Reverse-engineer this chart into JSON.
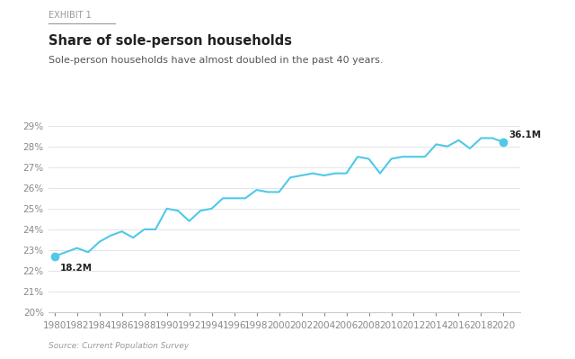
{
  "exhibit_label": "EXHIBIT 1",
  "title": "Share of sole-person households",
  "subtitle": "Sole-person households have almost doubled in the past 40 years.",
  "source": "Source: Current Population Survey",
  "line_color": "#4EC9E8",
  "background_color": "#FFFFFF",
  "years": [
    1980,
    1981,
    1982,
    1983,
    1984,
    1985,
    1986,
    1987,
    1988,
    1989,
    1990,
    1991,
    1992,
    1993,
    1994,
    1995,
    1996,
    1997,
    1998,
    1999,
    2000,
    2001,
    2002,
    2003,
    2004,
    2005,
    2006,
    2007,
    2008,
    2009,
    2010,
    2011,
    2012,
    2013,
    2014,
    2015,
    2016,
    2017,
    2018,
    2019,
    2020
  ],
  "values": [
    22.7,
    22.9,
    23.1,
    22.9,
    23.4,
    23.7,
    23.9,
    23.6,
    24.0,
    24.0,
    25.0,
    24.9,
    24.4,
    24.9,
    25.0,
    25.5,
    25.5,
    25.5,
    25.9,
    25.8,
    25.8,
    26.5,
    26.6,
    26.7,
    26.6,
    26.7,
    26.7,
    27.5,
    27.4,
    26.7,
    27.4,
    27.5,
    27.5,
    27.5,
    28.1,
    28.0,
    28.3,
    27.9,
    28.4,
    28.4,
    28.2
  ],
  "ylim": [
    20.0,
    29.0
  ],
  "yticks": [
    20,
    21,
    22,
    23,
    24,
    25,
    26,
    27,
    28,
    29
  ],
  "xlim": [
    1979.5,
    2021.5
  ],
  "xticks": [
    1980,
    1982,
    1984,
    1986,
    1988,
    1990,
    1992,
    1994,
    1996,
    1998,
    2000,
    2002,
    2004,
    2006,
    2008,
    2010,
    2012,
    2014,
    2016,
    2018,
    2020
  ],
  "start_annotation": "18.2M",
  "end_annotation": "36.1M",
  "marker_color": "#4EC9E8",
  "marker_size": 6,
  "exhibit_color": "#999999",
  "title_color": "#222222",
  "subtitle_color": "#555555",
  "source_color": "#999999",
  "tick_color": "#888888",
  "spine_color": "#CCCCCC",
  "grid_color": "#E5E5E5"
}
